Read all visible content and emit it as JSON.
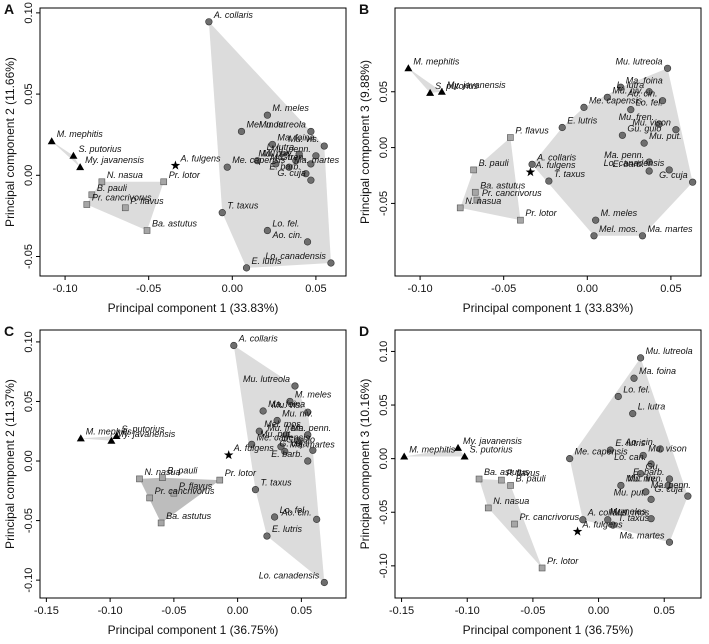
{
  "chart_data": [
    {
      "type": "scatter",
      "panel_label": "A",
      "xlabel": "Principal component 1 (33.83%)",
      "ylabel": "Principal component 2 (11.66%)",
      "xlim": [
        -0.115,
        0.068
      ],
      "ylim": [
        -0.062,
        0.103
      ],
      "xticks": [
        {
          "value": -0.1,
          "label": "-0.10"
        },
        -0.05,
        {
          "value": 0,
          "label": "0.00"
        },
        0.05
      ],
      "yticks": [
        -0.05,
        {
          "value": 0,
          "label": "0.00"
        },
        0.05,
        {
          "value": 0.1,
          "label": "0.10"
        }
      ],
      "series": [
        {
          "marker": "circle",
          "color": "#6e6e6e",
          "hull_color": "#dcdcdc",
          "labels": [
            "A. collaris",
            "M. meles",
            "Mel. mos.",
            "Mu. lutreola",
            "Ma. foina",
            "Mu. vis.",
            "L. lutra",
            "Mu. penn.",
            "Mu. niv.",
            "Gu.",
            "Mu. put.",
            "Mu. fren.",
            "Me. capensis",
            "Ma. martes",
            "E. barb.",
            "G. cuja",
            "T. taxus",
            "Lo. fel.",
            "Ao. cin.",
            "Lo. canadensis",
            "E. lutris"
          ],
          "x": [
            -0.014,
            0.021,
            0.0055,
            0.047,
            0.024,
            0.055,
            0.04,
            0.05,
            0.015,
            0.026,
            0.038,
            0.047,
            -0.003,
            0.034,
            0.044,
            0.047,
            -0.006,
            0.021,
            0.045,
            0.059,
            0.0085
          ],
          "values": [
            0.0945,
            0.037,
            0.027,
            0.027,
            0.019,
            0.018,
            0.013,
            0.012,
            0.009,
            0.007,
            0.009,
            0.007,
            0.005,
            0.005,
            0.001,
            -0.003,
            -0.023,
            -0.034,
            -0.041,
            -0.054,
            -0.057
          ]
        },
        {
          "marker": "square",
          "color": "#a6a6a6",
          "hull_color": "#dcdcdc",
          "labels": [
            "N. nasua",
            "B. pauli",
            "Pr. lotor",
            "Pr. cancrivorus",
            "P. flavus",
            "Ba. astutus"
          ],
          "x": [
            -0.078,
            -0.084,
            -0.041,
            -0.087,
            -0.064,
            -0.051
          ],
          "values": [
            -0.004,
            -0.012,
            -0.004,
            -0.018,
            -0.02,
            -0.034
          ]
        },
        {
          "marker": "triangle",
          "color": "#000000",
          "hull_color": "#dcdcdc",
          "labels": [
            "M. mephitis",
            "S. putorius",
            "My. javanensis"
          ],
          "x": [
            -0.108,
            -0.095,
            -0.091
          ],
          "values": [
            0.021,
            0.012,
            0.005
          ]
        },
        {
          "marker": "star",
          "color": "#000000",
          "labels": [
            "A. fulgens"
          ],
          "x": [
            -0.034
          ],
          "values": [
            0.006
          ]
        }
      ]
    },
    {
      "type": "scatter",
      "panel_label": "B",
      "xlabel": "Principal component 1 (33.83%)",
      "ylabel": "Principal component 3 (9.88%)",
      "xlim": [
        -0.115,
        0.068
      ],
      "ylim": [
        -0.115,
        0.125
      ],
      "xticks": [
        {
          "value": -0.1,
          "label": "-0.10"
        },
        -0.05,
        {
          "value": 0,
          "label": "0.00"
        },
        0.05
      ],
      "yticks": [
        -0.05,
        {
          "value": 0,
          "label": "0.00"
        },
        0.05
      ],
      "series": [
        {
          "marker": "circle",
          "color": "#6e6e6e",
          "hull_color": "#dcdcdc",
          "labels": [
            "Mu. lutreola",
            "Ma. foina",
            "L. lutra",
            "Mu. niv.",
            "Ao. cin.",
            "Me. capensis",
            "Lo. fel.",
            "E. lutris",
            "Mu. fren.",
            "Mu. vison",
            "Gu. gulo",
            "Mu. put.",
            "A. collaris",
            "Ma. penn.",
            "E. barb.",
            "Lo. canadensis",
            "T. taxus",
            "G. cuja",
            "M. meles",
            "Ma. martes",
            "Mel. mos."
          ],
          "x": [
            0.048,
            0.02,
            0.037,
            0.012,
            0.045,
            -0.002,
            0.026,
            -0.015,
            0.043,
            0.053,
            0.021,
            0.034,
            -0.033,
            0.037,
            0.037,
            0.049,
            -0.023,
            0.063,
            0.005,
            0.033,
            0.004
          ],
          "values": [
            0.071,
            0.054,
            0.05,
            0.045,
            0.042,
            0.036,
            0.034,
            0.018,
            0.021,
            0.016,
            0.011,
            0.004,
            -0.015,
            -0.013,
            -0.021,
            -0.02,
            -0.03,
            -0.031,
            -0.065,
            -0.079,
            -0.079
          ]
        },
        {
          "marker": "square",
          "color": "#a6a6a6",
          "hull_color": "#dcdcdc",
          "labels": [
            "P. flavus",
            "B. pauli",
            "Ba. astutus",
            "Pr. cancrivorus",
            "N. nasua",
            "Pr. lotor"
          ],
          "x": [
            -0.046,
            -0.068,
            -0.067,
            -0.066,
            -0.076,
            -0.04
          ],
          "values": [
            0.009,
            -0.02,
            -0.04,
            -0.047,
            -0.054,
            -0.065
          ]
        },
        {
          "marker": "triangle",
          "color": "#000000",
          "hull_color": "#dcdcdc",
          "labels": [
            "M. mephitis",
            "S. putorius",
            "My. javanensis"
          ],
          "x": [
            -0.107,
            -0.094,
            -0.087
          ],
          "values": [
            0.071,
            0.049,
            0.05
          ]
        },
        {
          "marker": "star",
          "color": "#000000",
          "labels": [
            "A. fulgens"
          ],
          "x": [
            -0.034
          ],
          "values": [
            -0.022
          ]
        }
      ]
    },
    {
      "type": "scatter",
      "panel_label": "C",
      "xlabel": "Principal component 1 (36.75%)",
      "ylabel": "Principal component 2 (11.37%)",
      "xlim": [
        -0.155,
        0.085
      ],
      "ylim": [
        -0.115,
        0.11
      ],
      "xticks": [
        -0.15,
        {
          "value": -0.1,
          "label": "-0.10"
        },
        -0.05,
        {
          "value": 0,
          "label": "0.00"
        },
        0.05
      ],
      "yticks": [
        {
          "value": -0.1,
          "label": "-0.10"
        },
        -0.05,
        {
          "value": 0,
          "label": "0.00"
        },
        0.05,
        {
          "value": 0.1,
          "label": "0.10"
        }
      ],
      "series": [
        {
          "marker": "circle",
          "color": "#6e6e6e",
          "hull_color": "#dcdcdc",
          "labels": [
            "A. collaris",
            "Mu. lutreola",
            "M. meles",
            "Ma. foina",
            "Mu. vis.",
            "Mu. niv.",
            "Mel. mos.",
            "Ma. penn.",
            "Mu. fren.",
            "Mu. put.",
            "Me. capensis",
            "G. gulo",
            "G. cuja",
            "Ma. martes",
            "E. barb.",
            "T. taxus",
            "Lo. fel.",
            "Ao. cin.",
            "E. lutris",
            "Lo. canadensis"
          ],
          "x": [
            -0.003,
            0.045,
            0.041,
            0.02,
            0.055,
            0.031,
            0.017,
            0.038,
            0.055,
            0.047,
            0.011,
            0.034,
            0.059,
            0.037,
            0.055,
            0.014,
            0.029,
            0.062,
            0.023,
            0.068
          ],
          "values": [
            0.097,
            0.063,
            0.05,
            0.042,
            0.041,
            0.034,
            0.025,
            0.022,
            0.022,
            0.017,
            0.014,
            0.012,
            0.009,
            0.008,
            0.0,
            -0.024,
            -0.047,
            -0.049,
            -0.063,
            -0.102
          ]
        },
        {
          "marker": "square",
          "color": "#a6a6a6",
          "hull_color": "#bdbdbd",
          "labels": [
            "N. nasua",
            "B. pauli",
            "Pr. lotor",
            "P. flavus",
            "Pr. cancrivorus",
            "Ba. astutus"
          ],
          "x": [
            -0.077,
            -0.059,
            -0.014,
            -0.05,
            -0.069,
            -0.06
          ],
          "values": [
            -0.015,
            -0.014,
            -0.016,
            -0.027,
            -0.031,
            -0.052
          ]
        },
        {
          "marker": "triangle",
          "color": "#000000",
          "hull_color": "#dcdcdc",
          "labels": [
            "M. mephitis",
            "S. putorius",
            "My. javanensis"
          ],
          "x": [
            -0.123,
            -0.095,
            -0.099
          ],
          "values": [
            0.019,
            0.021,
            0.017
          ]
        },
        {
          "marker": "star",
          "color": "#000000",
          "labels": [
            "A. fulgens"
          ],
          "x": [
            -0.007
          ],
          "values": [
            0.005
          ]
        }
      ]
    },
    {
      "type": "scatter",
      "panel_label": "D",
      "xlabel": "Principal component 1 (36.75%)",
      "ylabel": "Principal component 3 (10.16%)",
      "xlim": [
        -0.155,
        0.078
      ],
      "ylim": [
        -0.13,
        0.12
      ],
      "xticks": [
        -0.15,
        {
          "value": -0.1,
          "label": "-0.10"
        },
        -0.05,
        {
          "value": 0,
          "label": "0.00"
        },
        0.05
      ],
      "yticks": [
        {
          "value": -0.1,
          "label": "-0.10"
        },
        -0.05,
        {
          "value": 0,
          "label": "0.00"
        },
        0.05,
        {
          "value": 0.1,
          "label": "0.10"
        }
      ],
      "series": [
        {
          "marker": "circle",
          "color": "#6e6e6e",
          "hull_color": "#dcdcdc",
          "labels": [
            "Mu. lutreola",
            "Ma. foina",
            "Lo. fel.",
            "L. lutra",
            "E. lutris",
            "Me. capensis",
            "Ao. cin.",
            "Mu. vison",
            "Lo. can.",
            "Gu.",
            "E. barb.",
            "Mu. fren.",
            "Mu. niv.",
            "Ma. penn.",
            "Mu. put.",
            "G. cuja",
            "A. collaris",
            "Mel. mos",
            "T. taxus",
            "M. meles",
            "Ma. martes"
          ],
          "x": [
            0.032,
            0.027,
            0.015,
            0.026,
            0.009,
            -0.022,
            0.047,
            0.034,
            0.04,
            0.032,
            0.054,
            0.053,
            0.017,
            0.036,
            0.04,
            0.068,
            -0.012,
            0.007,
            0.011,
            0.04,
            0.054
          ],
          "values": [
            0.094,
            0.075,
            0.058,
            0.042,
            0.008,
            0.0,
            0.009,
            0.003,
            -0.005,
            -0.014,
            -0.019,
            -0.025,
            -0.025,
            -0.031,
            -0.038,
            -0.035,
            -0.057,
            -0.057,
            -0.062,
            -0.056,
            -0.078
          ]
        },
        {
          "marker": "square",
          "color": "#a6a6a6",
          "hull_color": "#dcdcdc",
          "labels": [
            "Ba. astutus",
            "P. flavus",
            "B. pauli",
            "N. nasua",
            "Pr. cancrivorus",
            "Pr. lotor"
          ],
          "x": [
            -0.091,
            -0.074,
            -0.067,
            -0.084,
            -0.064,
            -0.043
          ],
          "values": [
            -0.019,
            -0.02,
            -0.025,
            -0.046,
            -0.061,
            -0.102
          ]
        },
        {
          "marker": "triangle",
          "color": "#000000",
          "hull_color": "#dcdcdc",
          "labels": [
            "My. javanensis",
            "M. mephitis",
            "S. putorius"
          ],
          "x": [
            -0.107,
            -0.148,
            -0.102
          ],
          "values": [
            0.01,
            0.002,
            0.002
          ]
        },
        {
          "marker": "star",
          "color": "#000000",
          "labels": [
            "A. fulgens"
          ],
          "x": [
            -0.016
          ],
          "values": [
            -0.068
          ]
        }
      ]
    }
  ]
}
